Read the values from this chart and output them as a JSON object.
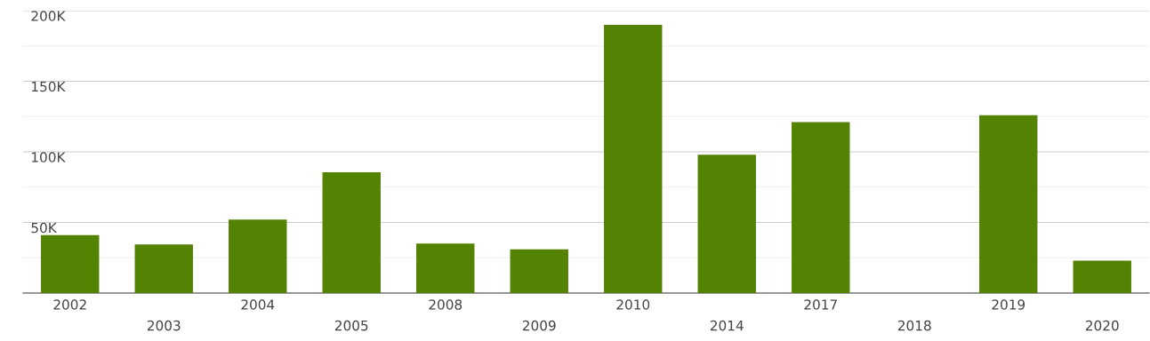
{
  "chart_data": {
    "type": "bar",
    "categories": [
      "2002",
      "2003",
      "2004",
      "2005",
      "2008",
      "2009",
      "2010",
      "2014",
      "2017",
      "2018",
      "2019",
      "2020"
    ],
    "values": [
      41000,
      34500,
      52000,
      85500,
      35000,
      31000,
      190000,
      98000,
      121000,
      null,
      126000,
      23000
    ],
    "color": "#548203",
    "ylim": [
      0,
      200000
    ],
    "yticks": [
      {
        "value": 25000,
        "label": null
      },
      {
        "value": 50000,
        "label": "50K"
      },
      {
        "value": 75000,
        "label": null
      },
      {
        "value": 100000,
        "label": "100K"
      },
      {
        "value": 125000,
        "label": null
      },
      {
        "value": 150000,
        "label": "150K"
      },
      {
        "value": 175000,
        "label": null
      },
      {
        "value": 200000,
        "label": "200K"
      }
    ],
    "grid": "y",
    "legend": false
  }
}
